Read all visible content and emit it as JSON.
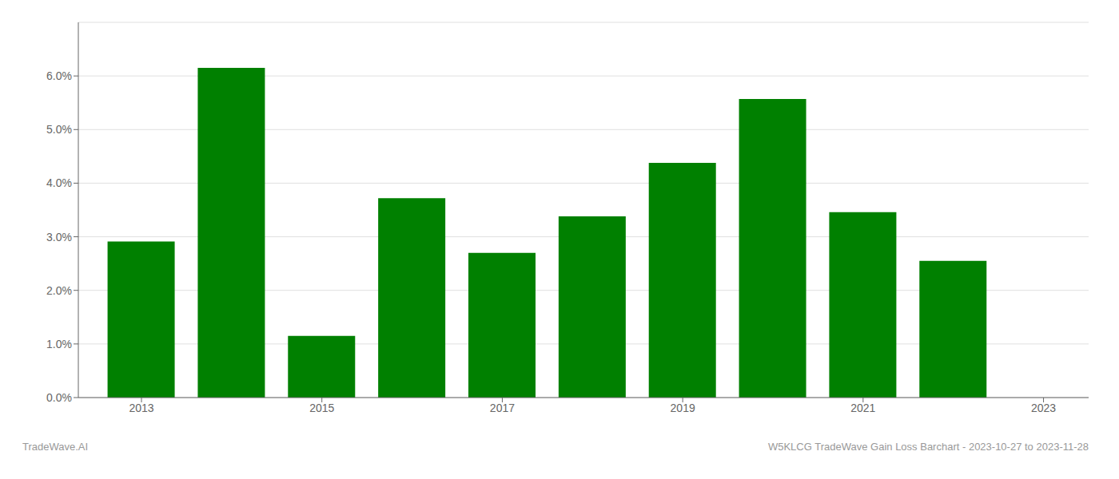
{
  "chart_data": {
    "type": "bar",
    "x": [
      2013,
      2014,
      2015,
      2016,
      2017,
      2018,
      2019,
      2020,
      2021,
      2022
    ],
    "values": [
      0.0291,
      0.0615,
      0.0115,
      0.0372,
      0.027,
      0.0338,
      0.0438,
      0.0557,
      0.0346,
      0.0255
    ],
    "color": "#008000",
    "xlim": [
      2012.3,
      2023.5
    ],
    "xticks": [
      2013,
      2015,
      2017,
      2019,
      2021,
      2023
    ],
    "ylim": [
      0,
      0.07
    ],
    "yticks": [
      {
        "value": 0.0,
        "label": "0.0%"
      },
      {
        "value": 0.01,
        "label": "1.0%"
      },
      {
        "value": 0.02,
        "label": "2.0%"
      },
      {
        "value": 0.03,
        "label": "3.0%"
      },
      {
        "value": 0.04,
        "label": "4.0%"
      },
      {
        "value": 0.05,
        "label": "5.0%"
      },
      {
        "value": 0.06,
        "label": "6.0%"
      }
    ],
    "grid": true,
    "annotations": [
      "TradeWave.AI",
      "W5KLCG TradeWave Gain Loss Barchart - 2023-10-27 to 2023-11-28"
    ]
  }
}
